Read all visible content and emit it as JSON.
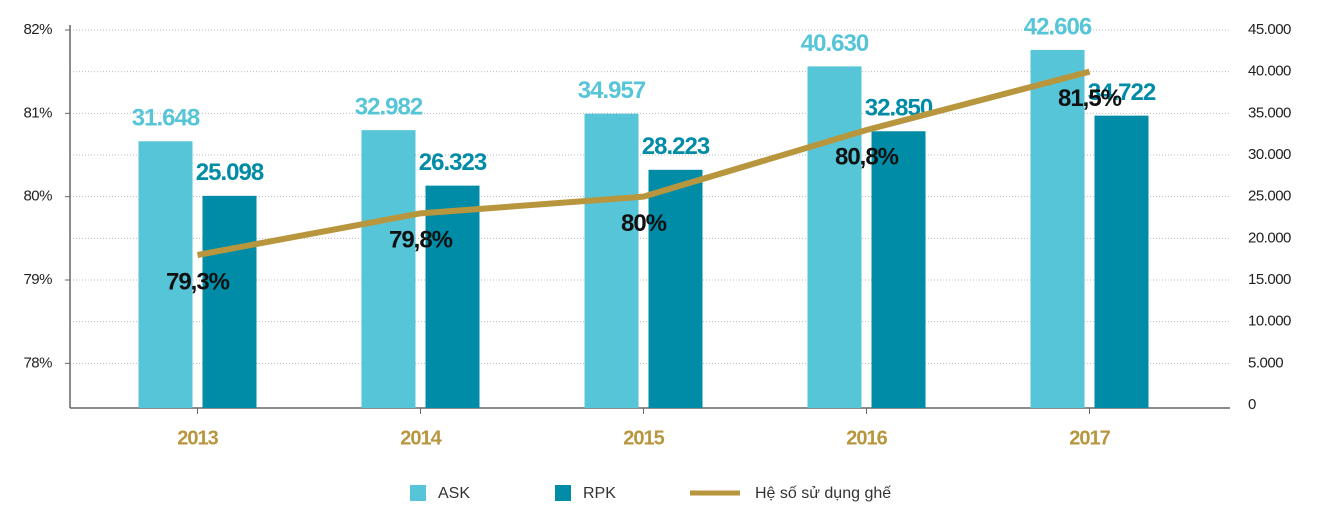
{
  "chart_data": {
    "type": "bar",
    "categories": [
      "2013",
      "2014",
      "2015",
      "2016",
      "2017"
    ],
    "series": [
      {
        "name": "ASK",
        "type": "bar",
        "axis": "y2",
        "color": "#56c5d8",
        "values": [
          31648,
          32982,
          34957,
          40630,
          42606
        ],
        "value_labels": [
          "31.648",
          "32.982",
          "34.957",
          "40.630",
          "42.606"
        ]
      },
      {
        "name": "RPK",
        "type": "bar",
        "axis": "y2",
        "color": "#008ba6",
        "values": [
          25098,
          26323,
          28223,
          32850,
          34722
        ],
        "value_labels": [
          "25.098",
          "26.323",
          "28.223",
          "32.850",
          "34.722"
        ]
      },
      {
        "name": "Hệ số sử dụng ghế",
        "type": "line",
        "color": "#b8963e",
        "values": [
          79.3,
          79.8,
          80,
          80.8,
          81.5
        ],
        "value_labels": [
          "79,3%",
          "79,8%",
          "80%",
          "80,8%",
          "81,5%"
        ]
      }
    ],
    "ylim": [
      77.5,
      82
    ],
    "yticks": [
      {
        "value": 78,
        "label": "78%"
      },
      {
        "value": 79,
        "label": "79%"
      },
      {
        "value": 80,
        "label": "80%"
      },
      {
        "value": 81,
        "label": "81%"
      },
      {
        "value": 82,
        "label": "82%"
      }
    ],
    "y2lim": [
      0,
      45000
    ],
    "y2ticks": [
      0,
      {
        "value": 5000,
        "label": "5.000"
      },
      {
        "value": 10000,
        "label": "10.000"
      },
      {
        "value": 15000,
        "label": "15.000"
      },
      {
        "value": 20000,
        "label": "20.000"
      },
      {
        "value": 25000,
        "label": "25.000"
      },
      {
        "value": 30000,
        "label": "30.000"
      },
      {
        "value": 35000,
        "label": "35.000"
      },
      {
        "value": 40000,
        "label": "40.000"
      },
      {
        "value": 45000,
        "label": "45.000"
      }
    ],
    "grid": true,
    "legend": "bottom"
  }
}
